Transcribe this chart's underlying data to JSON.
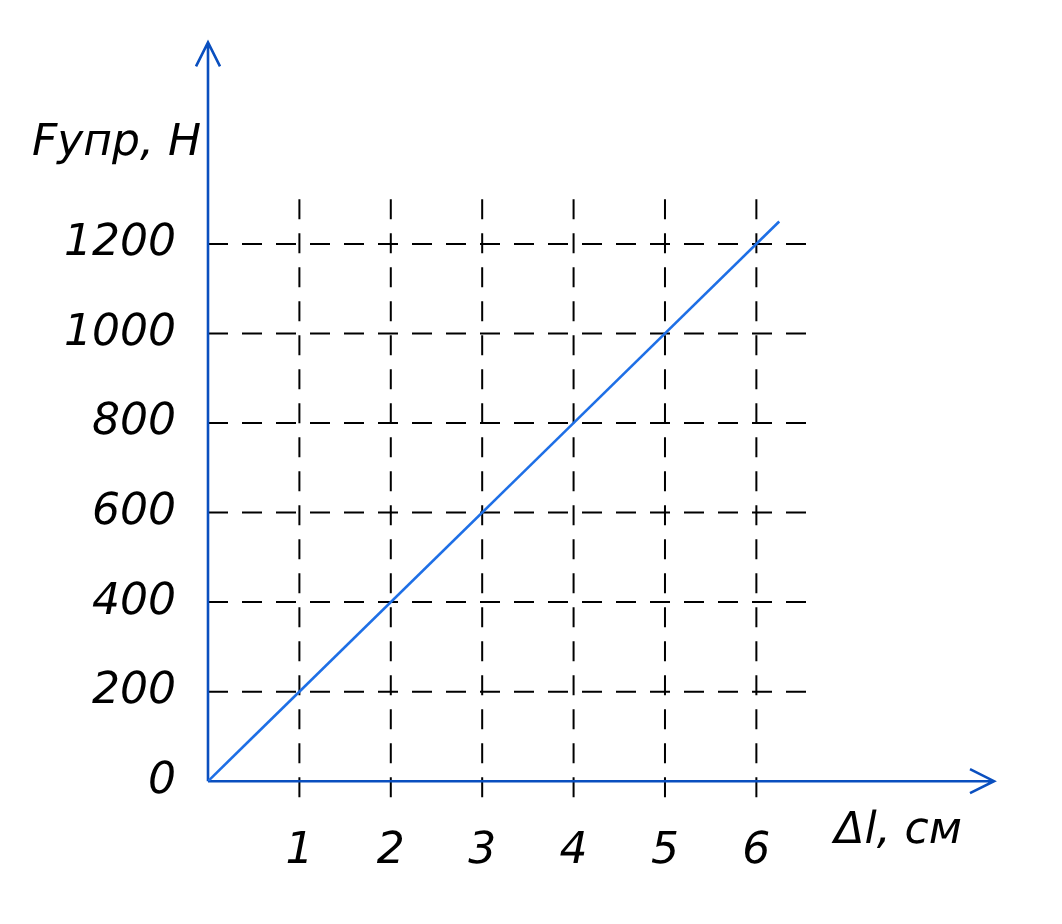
{
  "chart_data": {
    "type": "line",
    "xlabel": "Δl, см",
    "ylabel": "Fупр, Н",
    "x": [
      0,
      6.25
    ],
    "series": [
      {
        "color": "#1e6fe6",
        "values": [
          0,
          1250
        ]
      }
    ],
    "xlim": [
      0,
      8.6
    ],
    "ylim": [
      0,
      1650
    ],
    "xticks": [
      1,
      2,
      3,
      4,
      5,
      6
    ],
    "yticks": [
      0,
      200,
      400,
      600,
      800,
      1000,
      1200
    ],
    "grid": true,
    "legend": false,
    "marker": "none",
    "line_style": "solid"
  }
}
